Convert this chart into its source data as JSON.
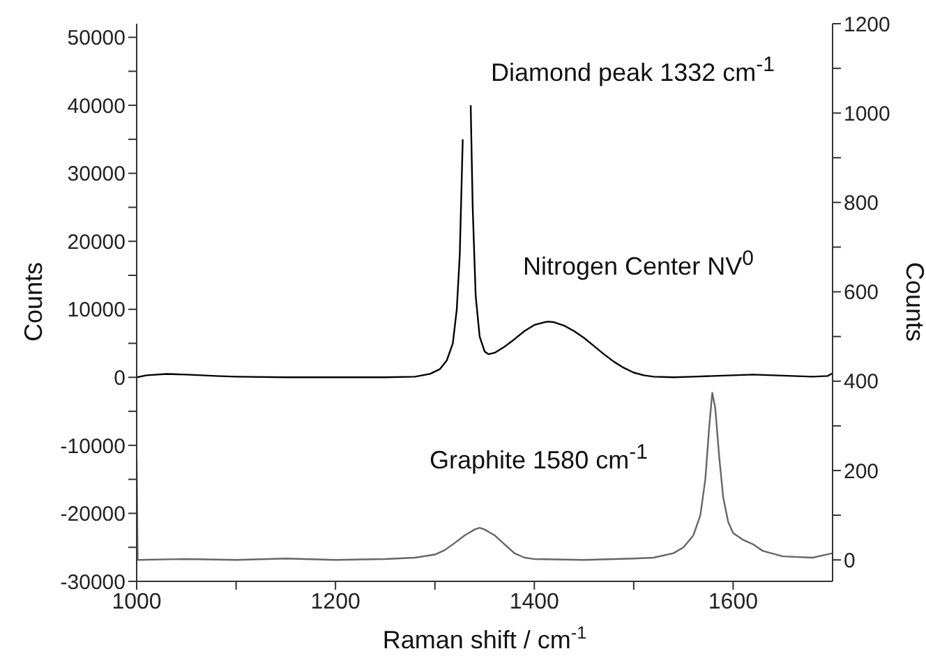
{
  "chart_data": {
    "type": "line",
    "xlabel": "Raman shift / cm$^{-1}$",
    "ylabel": "Counts",
    "y2label": "Counts",
    "annotations": [
      "Diamond peak 1332 cm$^{-1}$",
      "Nitrogen Center NV$^{0}$",
      "Graphite 1580 cm$^{-1}$"
    ],
    "xlim": [
      1000,
      1700
    ],
    "xticks": [
      1000,
      {
        "value": 1100,
        "label": null
      },
      1200,
      {
        "value": 1300,
        "label": null
      },
      1400,
      {
        "value": 1500,
        "label": null
      },
      1600
    ],
    "ylim": [
      -30000,
      52000
    ],
    "yticks": [
      -30000,
      {
        "value": -25000,
        "label": null
      },
      -20000,
      {
        "value": -15000,
        "label": null
      },
      -10000,
      {
        "value": -5000,
        "label": null
      },
      0,
      {
        "value": 5000,
        "label": null
      },
      10000,
      {
        "value": 15000,
        "label": null
      },
      20000,
      {
        "value": 25000,
        "label": null
      },
      30000,
      {
        "value": 35000,
        "label": null
      },
      40000,
      {
        "value": 45000,
        "label": null
      },
      50000
    ],
    "y2lim": [
      -48,
      1200
    ],
    "y2ticks": [
      0,
      {
        "value": 100,
        "label": null
      },
      200,
      {
        "value": 300,
        "label": null
      },
      400,
      {
        "value": 500,
        "label": null
      },
      600,
      {
        "value": 700,
        "label": null
      },
      800,
      {
        "value": 900,
        "label": null
      },
      1000,
      {
        "value": 1100,
        "label": null
      },
      1200
    ],
    "grid": false,
    "legend": false,
    "marker": "none",
    "line_style": "solid",
    "series": [
      {
        "color": "#000000",
        "x": [
          1000,
          1010,
          1030,
          1050,
          1080,
          1100,
          1150,
          1200,
          1250,
          1280,
          1295,
          1305,
          1312,
          1318,
          1322,
          1325,
          1328,
          1330,
          1334,
          1336,
          1338,
          1341,
          1345,
          1350,
          1354,
          1360,
          1370,
          1380,
          1390,
          1400,
          1410,
          1414,
          1420,
          1430,
          1440,
          1450,
          1460,
          1470,
          1480,
          1490,
          1500,
          1510,
          1520,
          1540,
          1560,
          1580,
          1600,
          1620,
          1640,
          1660,
          1680,
          1695,
          1700
        ],
        "values": [
          0,
          300,
          500,
          400,
          200,
          100,
          0,
          0,
          0,
          100,
          500,
          1200,
          2500,
          5000,
          10000,
          18000,
          35000,
          null,
          null,
          40000,
          25000,
          12000,
          6000,
          3800,
          3400,
          3600,
          4500,
          5600,
          6800,
          7700,
          8100,
          8200,
          8100,
          7600,
          6800,
          5800,
          4600,
          3400,
          2300,
          1400,
          700,
          300,
          100,
          0,
          100,
          200,
          300,
          400,
          300,
          200,
          100,
          200,
          600
        ]
      },
      {
        "color": "#666666",
        "axis": "y2",
        "x": [
          1000,
          1001,
          1050,
          1100,
          1150,
          1200,
          1250,
          1280,
          1300,
          1310,
          1320,
          1330,
          1340,
          1345,
          1350,
          1360,
          1370,
          1380,
          1390,
          1400,
          1450,
          1500,
          1520,
          1540,
          1550,
          1560,
          1567,
          1572,
          1576,
          1579,
          1582,
          1586,
          1590,
          1595,
          1600,
          1610,
          1620,
          1630,
          1650,
          1680,
          1700
        ],
        "values": [
          226,
          0,
          2,
          0,
          3,
          0,
          2,
          5,
          12,
          22,
          38,
          55,
          68,
          72,
          68,
          55,
          35,
          15,
          5,
          2,
          0,
          3,
          5,
          15,
          28,
          55,
          100,
          180,
          300,
          374,
          340,
          230,
          140,
          85,
          60,
          45,
          35,
          20,
          8,
          5,
          15
        ]
      }
    ]
  }
}
